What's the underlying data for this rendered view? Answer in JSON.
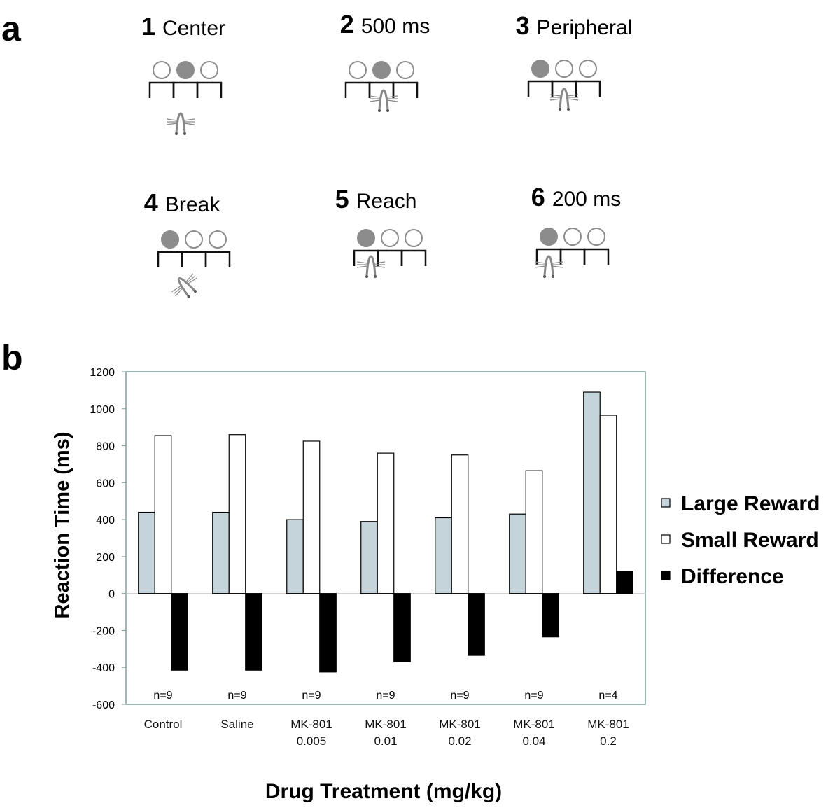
{
  "panel_labels": [
    "a",
    "b"
  ],
  "steps": [
    {
      "number": "1",
      "label": "Center"
    },
    {
      "number": "2",
      "label": "500 ms"
    },
    {
      "number": "3",
      "label": "Peripheral"
    },
    {
      "number": "4",
      "label": "Break"
    },
    {
      "number": "5",
      "label": "Reach"
    },
    {
      "number": "6",
      "label": "200 ms"
    }
  ],
  "chart_data": {
    "type": "bar",
    "x_label": "Drug Treatment (mg/kg)",
    "y_label": "Reaction Time (ms)",
    "categories": [
      "Control",
      "Saline",
      "MK-801\n0.005",
      "MK-801\n0.01",
      "MK-801\n0.02",
      "MK-801\n0.04",
      "MK-801\n0.2"
    ],
    "annotations": [
      "n=9",
      "n=9",
      "n=9",
      "n=9",
      "n=9",
      "n=9",
      "n=4"
    ],
    "series": [
      {
        "name": "Large Reward",
        "color": "#c5d3da",
        "values": [
          440,
          440,
          400,
          390,
          410,
          430,
          1090
        ]
      },
      {
        "name": "Small Reward",
        "color": "#ffffff",
        "values": [
          855,
          860,
          825,
          760,
          750,
          665,
          965
        ]
      },
      {
        "name": "Difference",
        "color": "#000000",
        "values": [
          -415,
          -415,
          -425,
          -370,
          -335,
          -235,
          120
        ]
      }
    ],
    "ylim": [
      -600,
      1200
    ],
    "yticks": [
      -600,
      -400,
      -200,
      0,
      200,
      400,
      600,
      800,
      1000,
      1200
    ],
    "grid": false,
    "legend": "right"
  }
}
